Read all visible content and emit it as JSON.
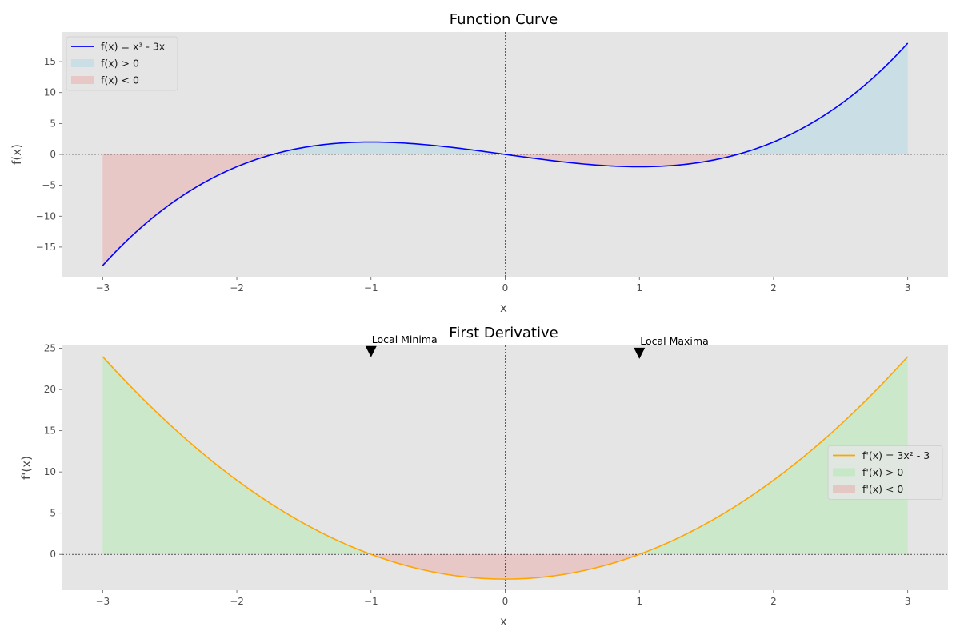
{
  "chart_data": [
    {
      "type": "area",
      "title": "Function Curve",
      "xlabel": "x",
      "ylabel": "f(x)",
      "xlim": [
        -3.3,
        3.3
      ],
      "ylim": [
        -19.8,
        19.8
      ],
      "xticks": [
        -3,
        -2,
        -1,
        0,
        1,
        2,
        3
      ],
      "yticks": [
        -15,
        -10,
        -5,
        0,
        5,
        10,
        15
      ],
      "x_tick_labels": [
        "−3",
        "−2",
        "−1",
        "0",
        "1",
        "2",
        "3"
      ],
      "y_tick_labels": [
        "−15",
        "−10",
        "−5",
        "0",
        "5",
        "10",
        "15"
      ],
      "grid": false,
      "legend_position": "upper left",
      "x": [
        -3.0,
        -2.75,
        -2.5,
        -2.25,
        -2.0,
        -1.75,
        -1.5,
        -1.25,
        -1.0,
        -0.75,
        -0.5,
        -0.25,
        0.0,
        0.25,
        0.5,
        0.75,
        1.0,
        1.25,
        1.5,
        1.75,
        2.0,
        2.25,
        2.5,
        2.75,
        3.0
      ],
      "series": [
        {
          "name": "f(x) = x³ - 3x",
          "color": "#0000ff",
          "values": [
            -18.0,
            -12.55,
            -8.13,
            -4.64,
            -2.0,
            -0.11,
            1.13,
            1.8,
            2.0,
            1.83,
            1.38,
            0.73,
            0.0,
            -0.73,
            -1.38,
            -1.83,
            -2.0,
            -1.8,
            -1.13,
            0.11,
            2.0,
            4.64,
            8.13,
            12.55,
            18.0
          ]
        }
      ],
      "fills": [
        {
          "name": "f(x) > 0",
          "color": "#add8e6",
          "opacity": 0.5,
          "where": "positive"
        },
        {
          "name": "f(x) < 0",
          "color": "#f08080",
          "opacity": 0.3,
          "where": "negative"
        }
      ],
      "reference_lines": {
        "y0": true,
        "x0": true
      }
    },
    {
      "type": "area",
      "title": "First Derivative",
      "xlabel": "x",
      "ylabel": "f'(x)",
      "xlim": [
        -3.3,
        3.3
      ],
      "ylim": [
        -4.35,
        25.35
      ],
      "xticks": [
        -3,
        -2,
        -1,
        0,
        1,
        2,
        3
      ],
      "yticks": [
        0,
        5,
        10,
        15,
        20,
        25
      ],
      "x_tick_labels": [
        "−3",
        "−2",
        "−1",
        "0",
        "1",
        "2",
        "3"
      ],
      "y_tick_labels": [
        "0",
        "5",
        "10",
        "15",
        "20",
        "25"
      ],
      "grid": false,
      "legend_position": "center right",
      "x": [
        -3.0,
        -2.75,
        -2.5,
        -2.25,
        -2.0,
        -1.75,
        -1.5,
        -1.25,
        -1.0,
        -0.75,
        -0.5,
        -0.25,
        0.0,
        0.25,
        0.5,
        0.75,
        1.0,
        1.25,
        1.5,
        1.75,
        2.0,
        2.25,
        2.5,
        2.75,
        3.0
      ],
      "series": [
        {
          "name": "f'(x) = 3x² - 3",
          "color": "#ffa500",
          "values": [
            24.0,
            19.69,
            15.75,
            12.19,
            9.0,
            6.19,
            3.75,
            1.69,
            0.0,
            -1.31,
            -2.25,
            -2.81,
            -3.0,
            -2.81,
            -2.25,
            -1.31,
            0.0,
            1.69,
            3.75,
            6.19,
            9.0,
            12.19,
            15.75,
            19.69,
            24.0
          ]
        }
      ],
      "fills": [
        {
          "name": "f'(x) > 0",
          "color": "#90ee90",
          "opacity": 0.3,
          "where": "positive"
        },
        {
          "name": "f'(x) < 0",
          "color": "#f08080",
          "opacity": 0.3,
          "where": "negative"
        }
      ],
      "reference_lines": {
        "y0": true,
        "x0": true
      },
      "annotations": [
        {
          "text": "Local Minima",
          "x": -1,
          "y": 24.5
        },
        {
          "text": "Local Maxima",
          "x": 1,
          "y": 24.3
        }
      ]
    }
  ]
}
